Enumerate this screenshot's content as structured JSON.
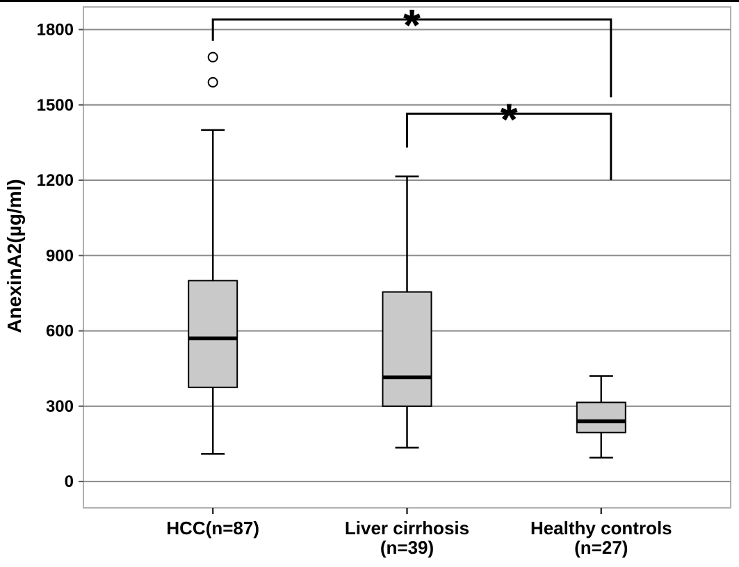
{
  "figure": {
    "description": "Box plot of serum AnexinA2 concentration in three study groups"
  },
  "chart_data": {
    "type": "boxplot",
    "title": "",
    "xlabel": "",
    "ylabel": "AnexinA2(µg/ml)",
    "yticks": [
      0,
      300,
      600,
      900,
      1200,
      1500,
      1800
    ],
    "ylim": [
      -105,
      1890
    ],
    "grid": true,
    "legend": false,
    "colors": {
      "box_fill": "#c9c9c9",
      "box_stroke": "#000000",
      "grid": "#8c8c8c",
      "frame": "#b0b0b0",
      "ink": "#000000"
    },
    "categories": [
      {
        "label_lines": [
          "HCC(n=87)"
        ]
      },
      {
        "label_lines": [
          "Liver cirrhosis",
          "(n=39)"
        ]
      },
      {
        "label_lines": [
          "Healthy controls",
          "(n=27)"
        ]
      }
    ],
    "series": [
      {
        "name": "HCC (n=87)",
        "whisker_low": 110,
        "q1": 375,
        "median": 570,
        "q3": 800,
        "whisker_high": 1400,
        "outliers": [
          1590,
          1690
        ]
      },
      {
        "name": "Liver cirrhosis (n=39)",
        "whisker_low": 135,
        "q1": 300,
        "median": 415,
        "q3": 755,
        "whisker_high": 1215,
        "outliers": []
      },
      {
        "name": "Healthy controls (n=27)",
        "whisker_low": 95,
        "q1": 195,
        "median": 240,
        "q3": 315,
        "whisker_high": 420,
        "outliers": []
      }
    ],
    "annotations": [
      {
        "type": "significance_bracket",
        "label": "*",
        "left_category": 0,
        "right_category": 2,
        "bar_value": 1840,
        "left_drop_to": 1755,
        "right_drop_to": 1530
      },
      {
        "type": "significance_bracket",
        "label": "*",
        "left_category": 1,
        "right_category": 2,
        "bar_value": 1465,
        "left_drop_to": 1330,
        "right_drop_to": 1200
      }
    ]
  }
}
